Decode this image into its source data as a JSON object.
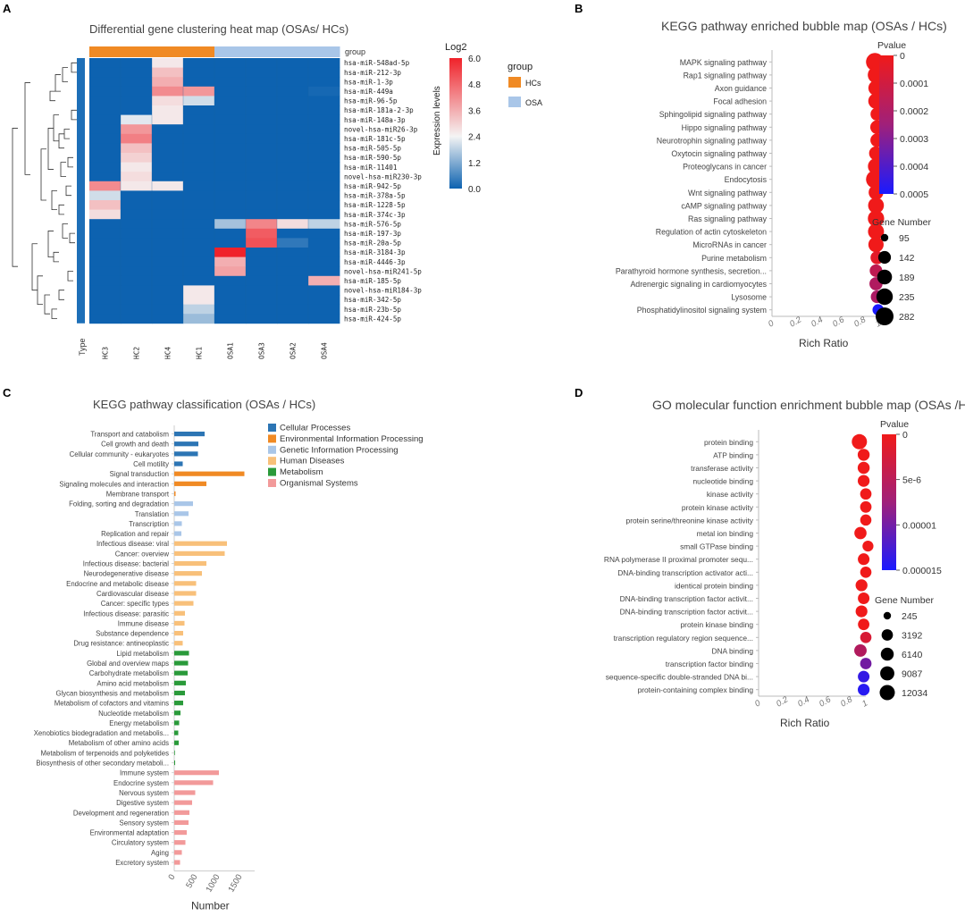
{
  "panels": {
    "a": {
      "letter": "A",
      "title": "Differential gene clustering heat map (OSAs/ HCs)"
    },
    "b": {
      "letter": "B",
      "title": "KEGG pathway enriched bubble map (OSAs / HCs)"
    },
    "c": {
      "letter": "C",
      "title": "KEGG pathway classification (OSAs / HCs)"
    },
    "d": {
      "letter": "D",
      "title": "GO molecular function enrichment bubble map (OSAs /HCs)"
    }
  },
  "colors": {
    "hcs": "#f08a24",
    "osa": "#a9c6e8",
    "heat_low": "#0d62b0",
    "heat_mid": "#f4f4f4",
    "heat_high": "#f0222a",
    "cellular": "#2c75b4",
    "environmental": "#f08a24",
    "genetic": "#a9c6e8",
    "human": "#f8c07a",
    "metabolism": "#2a9a3a",
    "organismal": "#f29a9a",
    "bubble_low": "#f01a1a",
    "bubble_high": "#1a1aff"
  },
  "chart_data": [
    {
      "id": "heatmap",
      "type": "heatmap",
      "title": "Differential gene clustering heat map (OSAs/ HCs)",
      "group_label": "group",
      "type_label": "Type",
      "columns": [
        "HC3",
        "HC2",
        "HC4",
        "HC1",
        "OSA1",
        "OSA3",
        "OSA2",
        "OSA4"
      ],
      "column_groups": [
        "HCs",
        "HCs",
        "HCs",
        "HCs",
        "OSA",
        "OSA",
        "OSA",
        "OSA"
      ],
      "rows": [
        "hsa-miR-548ad-5p",
        "hsa-miR-212-3p",
        "hsa-miR-1-3p",
        "hsa-miR-449a",
        "hsa-miR-96-5p",
        "hsa-miR-181a-2-3p",
        "hsa-miR-148a-3p",
        "novel-hsa-miR26-3p",
        "hsa-miR-181c-5p",
        "hsa-miR-505-5p",
        "hsa-miR-590-5p",
        "hsa-miR-11401",
        "novel-hsa-miR230-3p",
        "hsa-miR-942-5p",
        "hsa-miR-378a-5p",
        "hsa-miR-1228-5p",
        "hsa-miR-374c-3p",
        "hsa-miR-576-5p",
        "hsa-miR-197-3p",
        "hsa-miR-20a-5p",
        "hsa-miR-3184-3p",
        "hsa-miR-4446-3p",
        "novel-hsa-miR241-5p",
        "hsa-miR-185-5p",
        "novel-hsa-miR184-3p",
        "hsa-miR-342-5p",
        "hsa-miR-23b-5p",
        "hsa-miR-424-5p"
      ],
      "values": [
        [
          0,
          0,
          2.6,
          0,
          0,
          0,
          0,
          0
        ],
        [
          0,
          0,
          3.3,
          0,
          0,
          0,
          0,
          0
        ],
        [
          0,
          0,
          3.6,
          0,
          0,
          0,
          0,
          0
        ],
        [
          0,
          0,
          4.2,
          4.0,
          0,
          0,
          0,
          0.1
        ],
        [
          0,
          0,
          2.8,
          2.2,
          0,
          0,
          0,
          0
        ],
        [
          0,
          0,
          2.6,
          0,
          0,
          0,
          0,
          0
        ],
        [
          0,
          2.4,
          2.6,
          0,
          0,
          0,
          0,
          0
        ],
        [
          0,
          4.0,
          0,
          0,
          0,
          0,
          0,
          0
        ],
        [
          0,
          4.4,
          0,
          0,
          0,
          0,
          0,
          0
        ],
        [
          0,
          3.3,
          0,
          0,
          0,
          0,
          0,
          0
        ],
        [
          0,
          3.0,
          0,
          0,
          0,
          0,
          0,
          0
        ],
        [
          0,
          2.6,
          0,
          0,
          0,
          0,
          0,
          0
        ],
        [
          0,
          2.8,
          0,
          0,
          0,
          0,
          0,
          0
        ],
        [
          4.2,
          2.6,
          2.6,
          0,
          0,
          0,
          0,
          0
        ],
        [
          2.2,
          0,
          0,
          0,
          0,
          0,
          0,
          0
        ],
        [
          3.3,
          0,
          0,
          0,
          0,
          0,
          0,
          0
        ],
        [
          2.8,
          0,
          0,
          0,
          0,
          0,
          0,
          0
        ],
        [
          0,
          0,
          0,
          0,
          1.7,
          4.3,
          2.8,
          2.0
        ],
        [
          0,
          0,
          0,
          0,
          0,
          5.0,
          0,
          0
        ],
        [
          0,
          0,
          0,
          0,
          0,
          5.2,
          0.4,
          0
        ],
        [
          0,
          0,
          0,
          0,
          6.0,
          0,
          0,
          0
        ],
        [
          0,
          0,
          0,
          0,
          3.6,
          0,
          0,
          0
        ],
        [
          0,
          0,
          0,
          0,
          3.8,
          0,
          0,
          0
        ],
        [
          0,
          0,
          0,
          0,
          0,
          0,
          0,
          3.6
        ],
        [
          0,
          0,
          0,
          2.6,
          0,
          0,
          0,
          0
        ],
        [
          0,
          0,
          0,
          2.6,
          0,
          0,
          0,
          0
        ],
        [
          0,
          0,
          0,
          2.0,
          0,
          0,
          0,
          0
        ],
        [
          0,
          0,
          0,
          1.6,
          0,
          0,
          0,
          0
        ]
      ],
      "colorbar": {
        "title": "Log2",
        "label": "Expression levels",
        "ticks": [
          "6.0",
          "4.8",
          "3.6",
          "2.4",
          "1.2",
          "0.0"
        ],
        "range": [
          0,
          6
        ]
      },
      "legend": {
        "title": "group",
        "items": [
          "HCs",
          "OSA"
        ]
      }
    },
    {
      "id": "kegg_bubble",
      "type": "scatter",
      "title": "KEGG pathway enriched bubble map (OSAs / HCs)",
      "xlabel": "Rich Ratio",
      "x_ticks": [
        "0",
        "0.2",
        "0.4",
        "0.6",
        "0.8",
        "1"
      ],
      "xlim": [
        0,
        1
      ],
      "categories": [
        "MAPK signaling pathway",
        "Rap1 signaling pathway",
        "Axon guidance",
        "Focal adhesion",
        "Sphingolipid signaling pathway",
        "Hippo signaling pathway",
        "Neurotrophin signaling pathway",
        "Oxytocin signaling pathway",
        "Proteoglycans in cancer",
        "Endocytosis",
        "Wnt signaling pathway",
        "cAMP signaling pathway",
        "Ras signaling pathway",
        "Regulation of actin cytoskeleton",
        "MicroRNAs in cancer",
        "Purine metabolism",
        "Parathyroid hormone synthesis, secretion...",
        "Adrenergic signaling in cardiomyocytes",
        "Lysosome",
        "Phosphatidylinositol signaling system"
      ],
      "rich_ratio": [
        0.96,
        0.97,
        0.97,
        0.97,
        0.98,
        0.98,
        0.98,
        0.97,
        0.97,
        0.96,
        0.97,
        0.97,
        0.97,
        0.97,
        0.97,
        0.98,
        0.97,
        0.97,
        0.98,
        0.99
      ],
      "gene_number": [
        282,
        235,
        200,
        205,
        150,
        160,
        155,
        165,
        225,
        280,
        185,
        215,
        230,
        220,
        200,
        150,
        140,
        150,
        140,
        120
      ],
      "pvalue": [
        0,
        0,
        0,
        0,
        0,
        0,
        0,
        0,
        0,
        0,
        0,
        0,
        0,
        0,
        0,
        3e-05,
        0.00012,
        0.00015,
        0.00016,
        0.0005
      ],
      "pvalue_legend": {
        "title": "Pvalue",
        "ticks": [
          "0",
          "0.0001",
          "0.0002",
          "0.0003",
          "0.0004",
          "0.0005"
        ],
        "range": [
          0,
          0.0005
        ]
      },
      "size_legend": {
        "title": "Gene Number",
        "values": [
          "95",
          "142",
          "189",
          "235",
          "282"
        ]
      }
    },
    {
      "id": "kegg_classification",
      "type": "bar",
      "title": "KEGG pathway classification (OSAs / HCs)",
      "xlabel": "Number",
      "x_ticks": [
        "0",
        "500",
        "1000",
        "1500"
      ],
      "xlim": [
        0,
        1800
      ],
      "categories": [
        "Transport and catabolism",
        "Cell growth and death",
        "Cellular community - eukaryotes",
        "Cell motility",
        "Signal transduction",
        "Signaling molecules and interaction",
        "Membrane transport",
        "Folding, sorting and degradation",
        "Translation",
        "Transcription",
        "Replication and repair",
        "Infectious disease: viral",
        "Cancer: overview",
        "Infectious disease: bacterial",
        "Neurodegenerative disease",
        "Endocrine and metabolic disease",
        "Cardiovascular disease",
        "Cancer: specific types",
        "Infectious disease: parasitic",
        "Immune disease",
        "Substance dependence",
        "Drug resistance: antineoplastic",
        "Lipid metabolism",
        "Global and overview maps",
        "Carbohydrate metabolism",
        "Amino acid metabolism",
        "Glycan biosynthesis and metabolism",
        "Metabolism of cofactors and vitamins",
        "Nucleotide metabolism",
        "Energy metabolism",
        "Xenobiotics biodegradation and metabolis...",
        "Metabolism of other amino acids",
        "Metabolism of terpenoids and polyketides",
        "Biosynthesis of other secondary metaboli...",
        "Immune system",
        "Endocrine system",
        "Nervous system",
        "Digestive system",
        "Development and regeneration",
        "Sensory system",
        "Environmental adaptation",
        "Circulatory system",
        "Aging",
        "Excretory system"
      ],
      "values": [
        680,
        540,
        530,
        190,
        1570,
        720,
        30,
        420,
        320,
        170,
        160,
        1180,
        1130,
        720,
        620,
        490,
        490,
        430,
        240,
        230,
        200,
        190,
        330,
        310,
        300,
        260,
        240,
        200,
        140,
        110,
        90,
        100,
        15,
        20,
        1000,
        870,
        470,
        400,
        340,
        320,
        280,
        250,
        170,
        130
      ],
      "groups": [
        "Cellular Processes",
        "Cellular Processes",
        "Cellular Processes",
        "Cellular Processes",
        "Environmental Information Processing",
        "Environmental Information Processing",
        "Environmental Information Processing",
        "Genetic Information Processing",
        "Genetic Information Processing",
        "Genetic Information Processing",
        "Genetic Information Processing",
        "Human Diseases",
        "Human Diseases",
        "Human Diseases",
        "Human Diseases",
        "Human Diseases",
        "Human Diseases",
        "Human Diseases",
        "Human Diseases",
        "Human Diseases",
        "Human Diseases",
        "Human Diseases",
        "Metabolism",
        "Metabolism",
        "Metabolism",
        "Metabolism",
        "Metabolism",
        "Metabolism",
        "Metabolism",
        "Metabolism",
        "Metabolism",
        "Metabolism",
        "Metabolism",
        "Metabolism",
        "Organismal Systems",
        "Organismal Systems",
        "Organismal Systems",
        "Organismal Systems",
        "Organismal Systems",
        "Organismal Systems",
        "Organismal Systems",
        "Organismal Systems",
        "Organismal Systems",
        "Organismal Systems"
      ],
      "legend": [
        "Cellular Processes",
        "Environmental Information Processing",
        "Genetic Information Processing",
        "Human Diseases",
        "Metabolism",
        "Organismal Systems"
      ]
    },
    {
      "id": "go_bubble",
      "type": "scatter",
      "title": "GO molecular function enrichment bubble map (OSAs /HCs)",
      "xlabel": "Rich Ratio",
      "x_ticks": [
        "0",
        "0.2",
        "0.4",
        "0.6",
        "0.8",
        "1"
      ],
      "xlim": [
        0,
        1
      ],
      "categories": [
        "protein binding",
        "ATP binding",
        "transferase activity",
        "nucleotide binding",
        "kinase activity",
        "protein kinase activity",
        "protein serine/threonine kinase activity",
        "metal ion binding",
        "small GTPase binding",
        "RNA polymerase II proximal promoter sequ...",
        "DNA-binding transcription activator acti...",
        "identical protein binding",
        "DNA-binding transcription factor activit...",
        "DNA-binding transcription factor activit...",
        "protein kinase binding",
        "transcription regulatory region sequence...",
        "DNA binding",
        "transcription factor binding",
        "sequence-specific double-stranded DNA bi...",
        "protein-containing complex binding"
      ],
      "rich_ratio": [
        0.94,
        0.98,
        0.98,
        0.98,
        1.0,
        1.0,
        1.0,
        0.95,
        1.02,
        0.98,
        1.0,
        0.96,
        0.98,
        0.96,
        0.98,
        1.0,
        0.95,
        1.0,
        0.98,
        0.98
      ],
      "gene_number": [
        12034,
        4200,
        4300,
        4000,
        3200,
        3300,
        3000,
        4600,
        2600,
        3700,
        3100,
        4100,
        3600,
        3900,
        3300,
        3100,
        5100,
        3300,
        3600,
        3900
      ],
      "pvalue": [
        0,
        0,
        0,
        0,
        0,
        0,
        0,
        0,
        0,
        0,
        0,
        0,
        0,
        0,
        0,
        2e-06,
        5e-06,
        1e-05,
        1.5e-05,
        1.6e-05
      ],
      "pvalue_legend": {
        "title": "Pvalue",
        "ticks": [
          "0",
          "5e-6",
          "0.00001",
          "0.000015"
        ],
        "range": [
          0,
          1.7e-05
        ]
      },
      "size_legend": {
        "title": "Gene Number",
        "values": [
          "245",
          "3192",
          "6140",
          "9087",
          "12034"
        ]
      }
    }
  ]
}
